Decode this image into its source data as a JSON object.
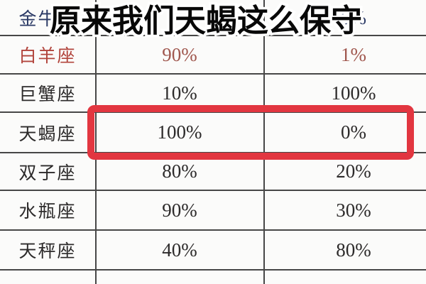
{
  "meme": {
    "caption": "原来我们天蝎这么保守"
  },
  "table": {
    "rows": [
      {
        "sign": "金牛座",
        "mid": "",
        "right": "0%"
      },
      {
        "sign": "白羊座",
        "mid": "90%",
        "right": "1%"
      },
      {
        "sign": "巨蟹座",
        "mid": "10%",
        "right": "100%"
      },
      {
        "sign": "天蝎座",
        "mid": "100%",
        "right": "0%"
      },
      {
        "sign": "双子座",
        "mid": "80%",
        "right": "20%"
      },
      {
        "sign": "水瓶座",
        "mid": "90%",
        "right": "30%"
      },
      {
        "sign": "天秤座",
        "mid": "40%",
        "right": "80%"
      }
    ]
  },
  "colors": {
    "highlight_box": "#e23640",
    "taurus_text": "#2b3a66",
    "aries_label": "#b2443c",
    "aries_values": "#a0574e",
    "default_text": "#2c2a2a",
    "grid_line": "#474747",
    "background": "#fbfbfa"
  },
  "chart_data": {
    "type": "table",
    "title": "原来我们天蝎这么保守",
    "categories": [
      "金牛座",
      "白羊座",
      "巨蟹座",
      "天蝎座",
      "双子座",
      "水瓶座",
      "天秤座"
    ],
    "series": [
      {
        "name": "column-2",
        "values": [
          null,
          "90%",
          "10%",
          "100%",
          "80%",
          "90%",
          "40%"
        ]
      },
      {
        "name": "column-3",
        "values": [
          "0%",
          "1%",
          "100%",
          "0%",
          "20%",
          "30%",
          "80%"
        ]
      }
    ],
    "highlighted_row": "天蝎座",
    "layout": {
      "grid": true,
      "header_row_cropped": true,
      "empty_partial_bottom_row": true
    }
  }
}
